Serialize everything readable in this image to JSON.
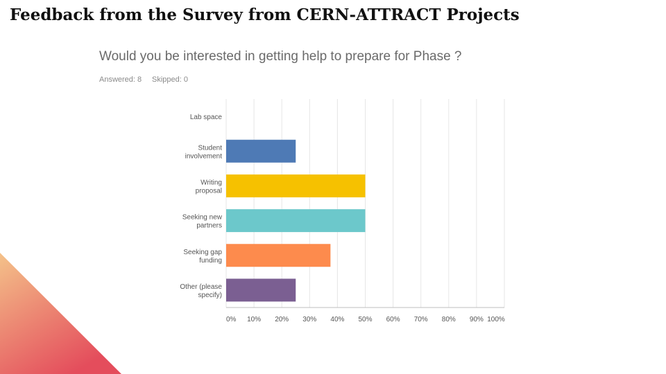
{
  "slide": {
    "title": "Feedback from the Survey from CERN-ATTRACT Projects"
  },
  "survey": {
    "question": "Would you be interested in getting help to prepare for Phase ?",
    "answered": "Answered: 8",
    "skipped": "Skipped: 0"
  },
  "colors": {
    "corner_start": "#f4c28a",
    "corner_end": "#e44d5c"
  },
  "chart_data": {
    "type": "bar",
    "orientation": "horizontal",
    "title": "Would you be interested in getting help to prepare for Phase ?",
    "categories": [
      [
        "Lab space"
      ],
      [
        "Student",
        "involvement"
      ],
      [
        "Writing",
        "proposal"
      ],
      [
        "Seeking new",
        "partners"
      ],
      [
        "Seeking gap",
        "funding"
      ],
      [
        "Other (please",
        "specify)"
      ]
    ],
    "values": [
      0,
      25,
      50,
      50,
      37.5,
      25
    ],
    "colors": [
      "#4e7ab5",
      "#4e7ab5",
      "#f6c100",
      "#6cc8cb",
      "#fd8b4d",
      "#7b5f92"
    ],
    "xlim": [
      0,
      100
    ],
    "ticks": [
      0,
      10,
      20,
      30,
      40,
      50,
      60,
      70,
      80,
      90,
      100
    ],
    "tick_labels": [
      "0%",
      "10%",
      "20%",
      "30%",
      "40%",
      "50%",
      "60%",
      "70%",
      "80%",
      "90%",
      "100%"
    ],
    "grid": true
  }
}
